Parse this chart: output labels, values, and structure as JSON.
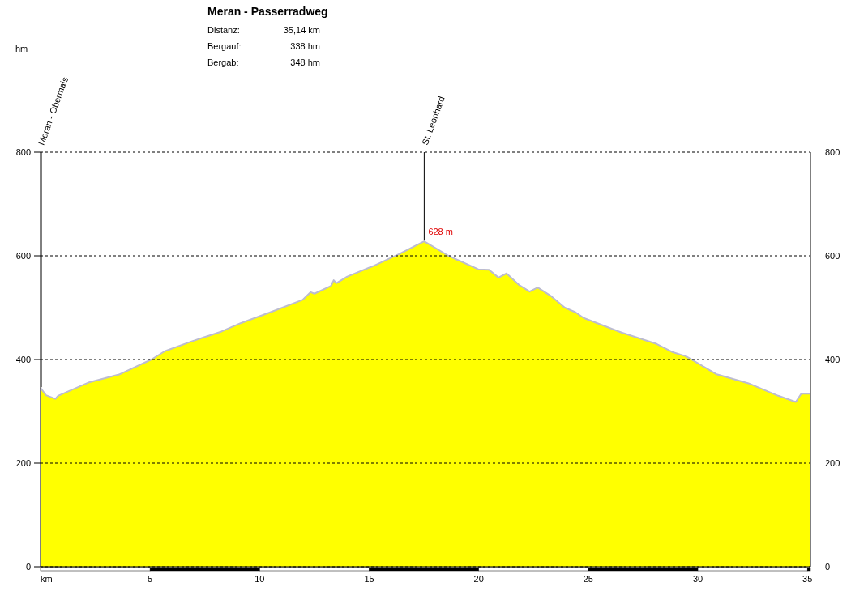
{
  "chart_data": {
    "type": "area",
    "title": "Meran - Passerradweg",
    "subtitle": [
      "Distanz: 35,14 km",
      "Bergauf: 338 hm",
      "Bergab: 348 hm"
    ],
    "xlabel": "km",
    "series": [
      {
        "color": "#ffff00",
        "x": [
          0,
          0.25,
          0.68,
          0.8,
          2.22,
          3.58,
          5.06,
          5.67,
          6.9,
          8.26,
          9.13,
          10.48,
          11.96,
          12.33,
          12.5,
          13.26,
          13.38,
          13.5,
          14.0,
          15.17,
          16.4,
          17.51,
          18.62,
          19.98,
          20.47,
          20.9,
          21.27,
          21.83,
          22.32,
          22.69,
          23.31,
          23.93,
          24.42,
          24.79,
          26.52,
          28.12,
          28.86,
          29.47,
          30.83,
          32.31,
          33.67,
          34.47,
          34.72,
          35.14
        ],
        "values": [
          345,
          331,
          324,
          330,
          356,
          371,
          400,
          416,
          435,
          454,
          470,
          491,
          515,
          530,
          527,
          542,
          553,
          547,
          560,
          580,
          604,
          628,
          600,
          574,
          573,
          558,
          566,
          544,
          531,
          539,
          522,
          500,
          491,
          480,
          452,
          430,
          414,
          406,
          372,
          354,
          330,
          318,
          334,
          334
        ]
      }
    ],
    "xlim": [
      0,
      35.14
    ],
    "xticks": [
      5,
      10,
      15,
      20,
      25,
      30,
      35
    ],
    "ylim": [
      0,
      800
    ],
    "yticks": [
      0,
      200,
      400,
      600,
      800
    ],
    "y2lim": [
      0,
      800
    ],
    "y2ticks": [
      0,
      200,
      400,
      600,
      800
    ],
    "grid": "y",
    "ref_lines": [
      {
        "axis": "x",
        "value": 0,
        "label": "Meran - Obermais"
      },
      {
        "axis": "x",
        "value": 17.51,
        "label": "St. Leonhard"
      }
    ],
    "annotations": [
      "hm",
      {
        "text": "628 m",
        "x": 17.51,
        "y": 628
      }
    ]
  }
}
